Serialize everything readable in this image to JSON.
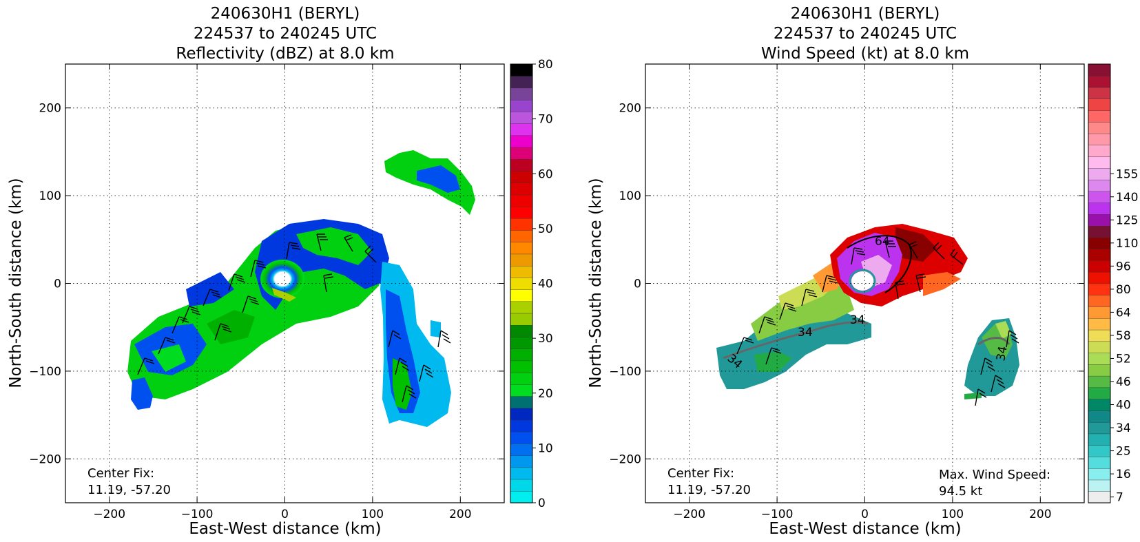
{
  "chart_data": [
    {
      "type": "heatmap",
      "title_lines": [
        "240630H1 (BERYL)",
        "224537 to 240245 UTC",
        "Reflectivity (dBZ) at 8.0 km"
      ],
      "xlabel": "East-West distance (km)",
      "ylabel": "North-South distance (km)",
      "xlim": [
        -250,
        250
      ],
      "ylim": [
        -250,
        250
      ],
      "xticks": [
        -200,
        -100,
        0,
        100,
        200
      ],
      "yticks": [
        -200,
        -100,
        0,
        100,
        200
      ],
      "xtick_labels": [
        "−200",
        "−100",
        "0",
        "100",
        "200"
      ],
      "ytick_labels": [
        "−200",
        "−100",
        "0",
        "100",
        "200"
      ],
      "grid": true,
      "annotation_lines": [
        "Center Fix:",
        "11.19, -57.20"
      ],
      "colorbar": {
        "min": 0,
        "max": 80,
        "ticks": [
          0,
          10,
          20,
          30,
          40,
          50,
          60,
          70,
          80
        ],
        "tick_labels": [
          "0",
          "10",
          "20",
          "30",
          "40",
          "50",
          "60",
          "70",
          "80"
        ],
        "colors": [
          "#00eeee",
          "#00d8ea",
          "#00b9ee",
          "#0098ee",
          "#0070f0",
          "#0050f0",
          "#0038e0",
          "#0028c0",
          "#007070",
          "#00dd20",
          "#00d010",
          "#00c000",
          "#00b000",
          "#009800",
          "#008800",
          "#99cc00",
          "#aad000",
          "#ffff00",
          "#eedd00",
          "#eebb00",
          "#ee9900",
          "#ff8800",
          "#ff6600",
          "#ff3300",
          "#ff0000",
          "#ee0000",
          "#dd0000",
          "#cc0000",
          "#bb0022",
          "#dd0077",
          "#ee00cc",
          "#dd33ee",
          "#bb55dd",
          "#9944cc",
          "#774499",
          "#442255",
          "#000000"
        ]
      }
    },
    {
      "type": "heatmap",
      "title_lines": [
        "240630H1 (BERYL)",
        "224537 to 240245 UTC",
        "Wind Speed (kt) at 8.0 km"
      ],
      "xlabel": "East-West distance (km)",
      "ylabel": "North-South distance (km)",
      "xlim": [
        -250,
        250
      ],
      "ylim": [
        -250,
        250
      ],
      "xticks": [
        -200,
        -100,
        0,
        100,
        200
      ],
      "yticks": [
        -200,
        -100,
        0,
        100,
        200
      ],
      "xtick_labels": [
        "−200",
        "−100",
        "0",
        "100",
        "200"
      ],
      "ytick_labels": [
        "−200",
        "−100",
        "0",
        "100",
        "200"
      ],
      "grid": true,
      "annotation_lines": [
        "Center Fix:",
        "11.19, -57.20"
      ],
      "max_wind_lines": [
        "Max. Wind Speed:",
        "94.5 kt"
      ],
      "contour_labels": [
        "34",
        "34",
        "34",
        "34",
        "64"
      ],
      "colorbar": {
        "ticks": [
          7,
          16,
          25,
          34,
          40,
          46,
          52,
          58,
          64,
          80,
          96,
          110,
          125,
          140,
          155
        ],
        "tick_labels": [
          "7",
          "16",
          "25",
          "34",
          "40",
          "46",
          "52",
          "58",
          "64",
          "80",
          "96",
          "110",
          "125",
          "140",
          "155"
        ],
        "tick_index": [
          0,
          2,
          4,
          6,
          8,
          10,
          12,
          14,
          16,
          18,
          20,
          22,
          24,
          26,
          28
        ],
        "colors": [
          "#eeeeee",
          "#bbf2f2",
          "#88eeee",
          "#55dddd",
          "#33c8c8",
          "#22b0b0",
          "#229999",
          "#118888",
          "#008866",
          "#22aa44",
          "#55bb44",
          "#88cc44",
          "#aadd55",
          "#ccdd55",
          "#eedd55",
          "#ffbb44",
          "#ff9933",
          "#ff6622",
          "#ff3311",
          "#ee1100",
          "#cc0000",
          "#aa0000",
          "#880000",
          "#771133",
          "#9911aa",
          "#bb33ee",
          "#cc55ee",
          "#dd88ee",
          "#eeaaee",
          "#ffbbee",
          "#ffaacc",
          "#ff99aa",
          "#ff8888",
          "#ff6666",
          "#ee4444",
          "#cc3344",
          "#aa1133",
          "#881133"
        ]
      }
    }
  ]
}
